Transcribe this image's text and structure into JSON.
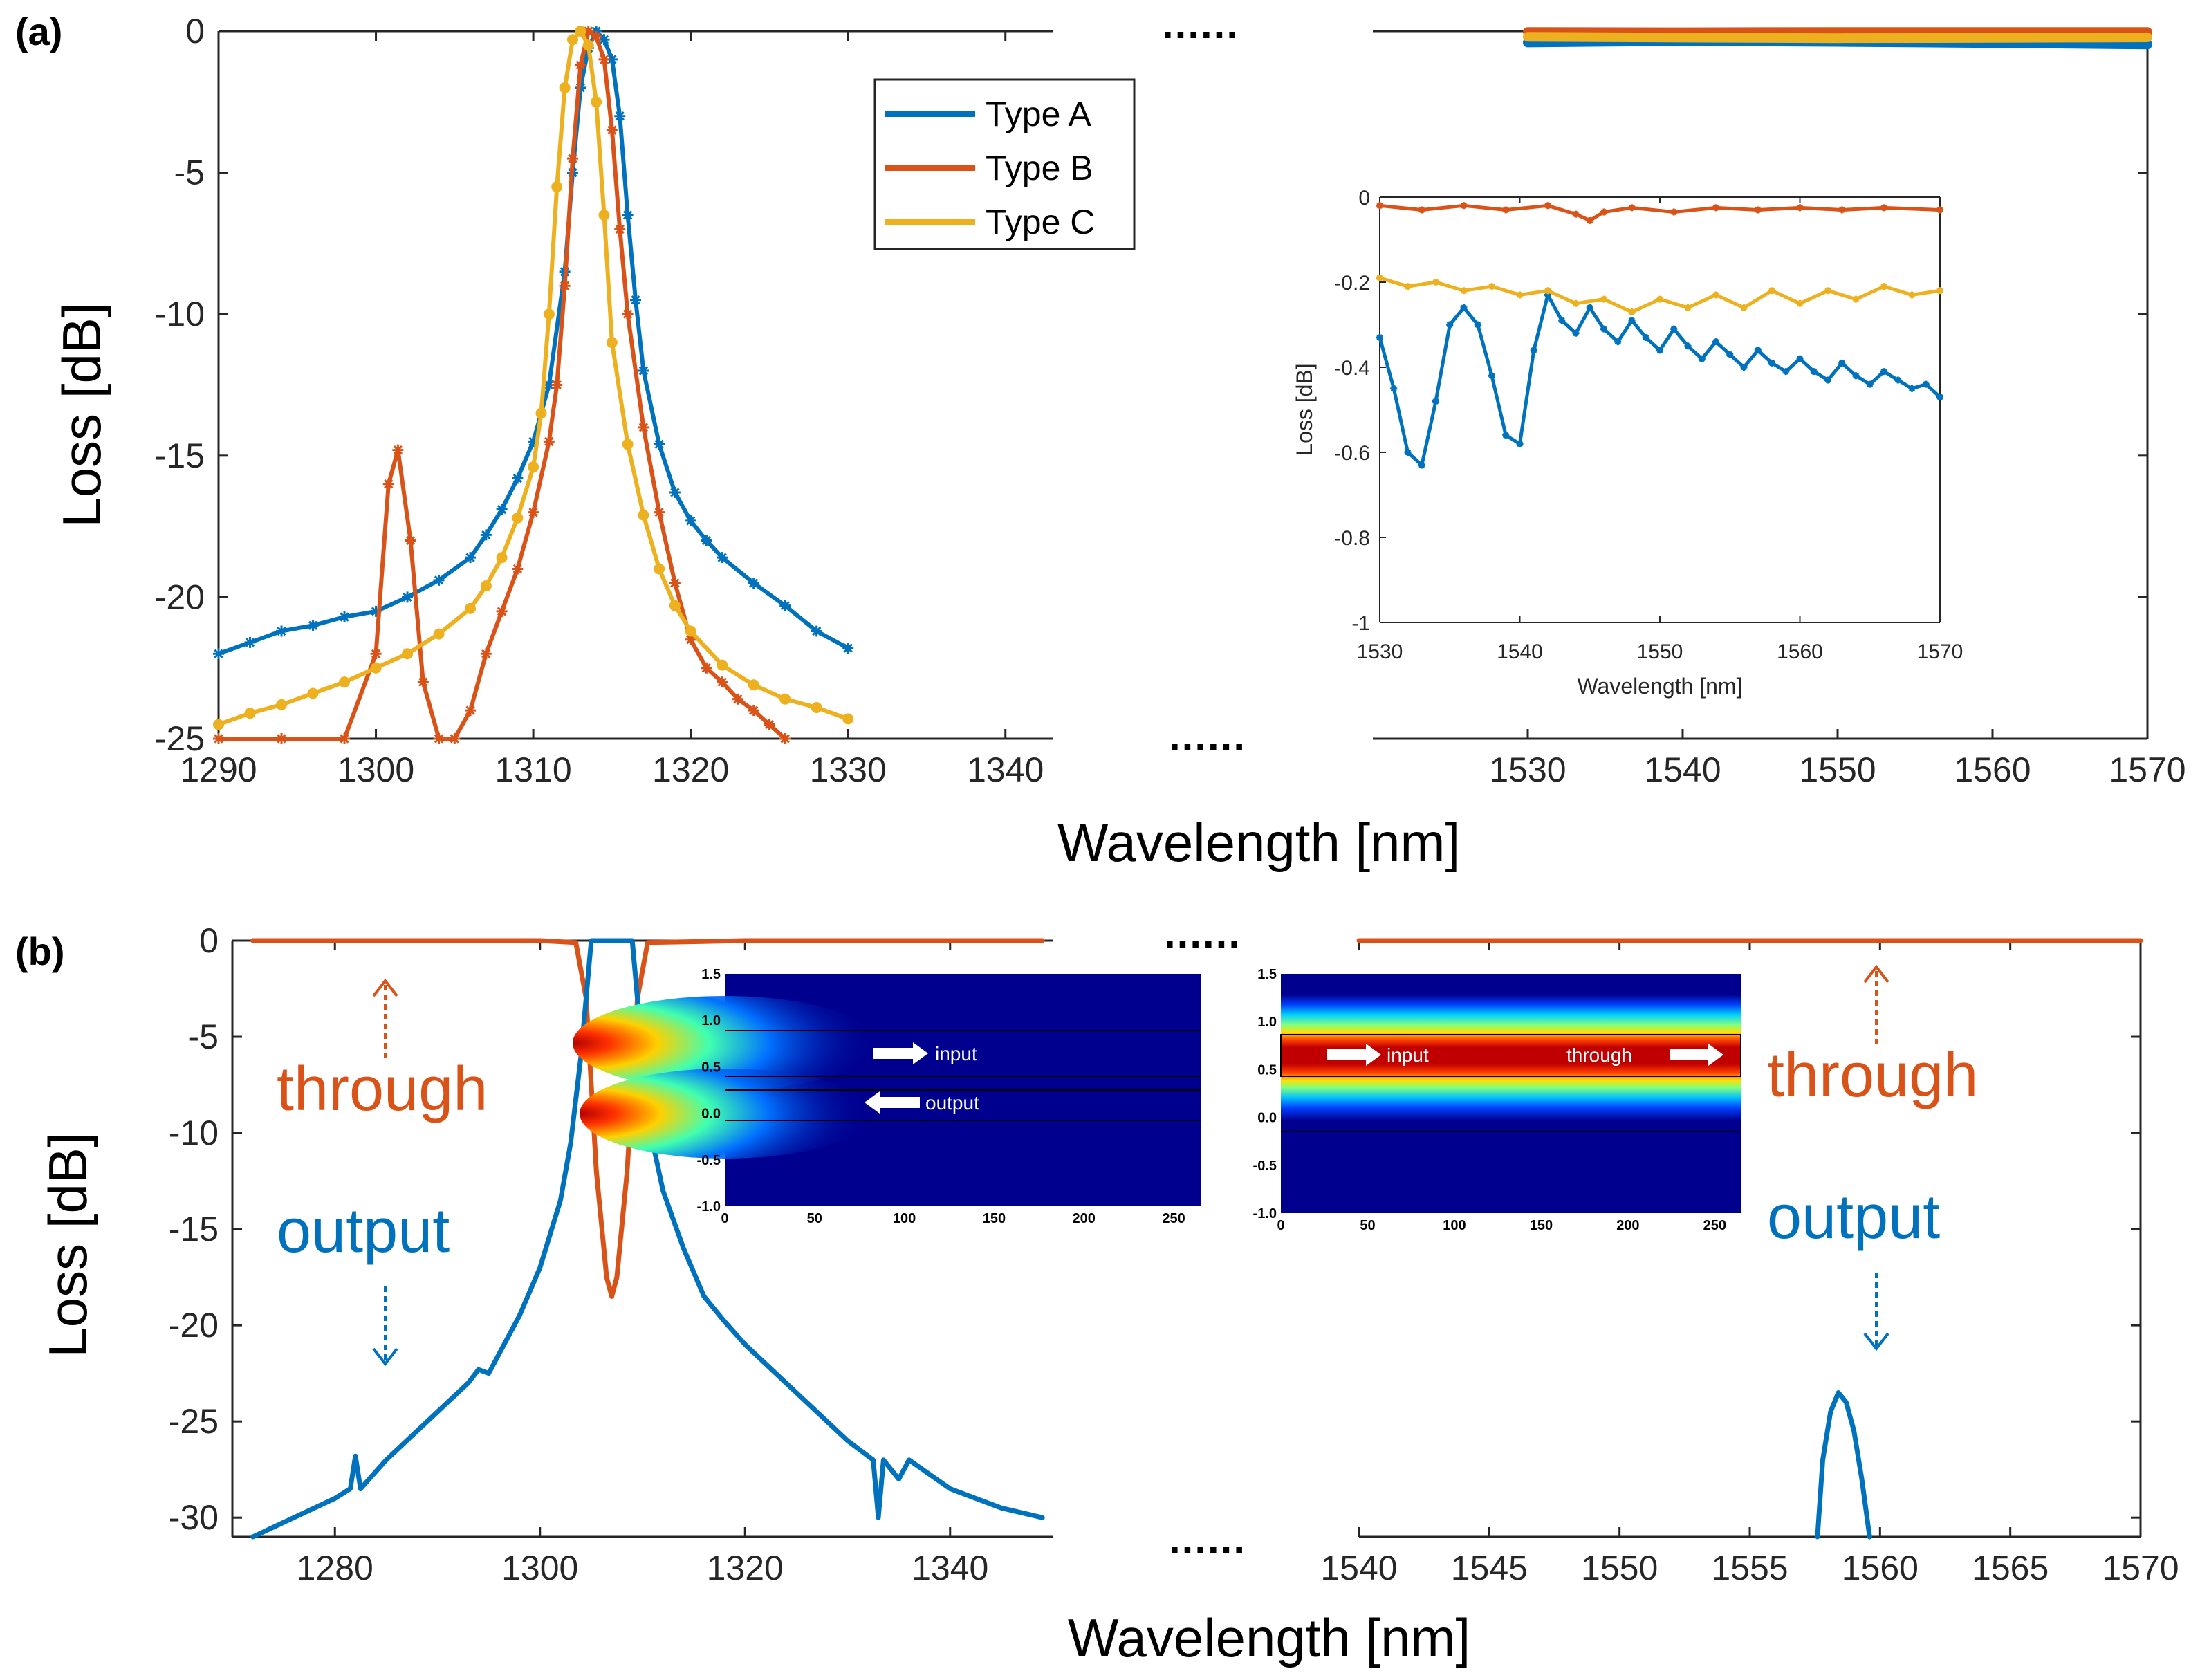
{
  "colors": {
    "type_a": "#0072BD",
    "type_b": "#D95319",
    "type_c": "#EDB120",
    "through": "#D95319",
    "output": "#0072BD",
    "axis": "#262626",
    "mode_background": "#00008f"
  },
  "panel_labels": {
    "a": "(a)",
    "b": "(b)"
  },
  "break_marks": {
    "a_top": "......",
    "a_bottom": "......",
    "b_top": "......",
    "b_bottom": "......"
  },
  "chart_data": [
    {
      "id": "a_left",
      "type": "line",
      "panel": "(a)",
      "xlabel": "Wavelength [nm]",
      "ylabel": "Loss [dB]",
      "xlim": [
        1290,
        1343
      ],
      "ylim": [
        -25,
        0
      ],
      "x_ticks": [
        1290,
        1300,
        1310,
        1320,
        1330,
        1340
      ],
      "y_ticks": [
        0,
        -5,
        -10,
        -15,
        -20,
        -25
      ],
      "legend": {
        "position": "top-right",
        "entries": [
          "Type A",
          "Type B",
          "Type C"
        ]
      },
      "series": [
        {
          "name": "Type A",
          "marker": "star",
          "x": [
            1290,
            1292,
            1294,
            1296,
            1298,
            1300,
            1302,
            1304,
            1306,
            1307,
            1308,
            1309,
            1310,
            1311,
            1312,
            1312.5,
            1313,
            1313.5,
            1314,
            1314.5,
            1315,
            1315.5,
            1316,
            1316.5,
            1317,
            1318,
            1319,
            1320,
            1321,
            1322,
            1324,
            1326,
            1328,
            1330
          ],
          "y": [
            -22,
            -21.6,
            -21.2,
            -21,
            -20.7,
            -20.5,
            -20,
            -19.4,
            -18.6,
            -17.8,
            -16.9,
            -15.8,
            -14.5,
            -12.5,
            -8.5,
            -5,
            -2,
            -0.6,
            0,
            -0.3,
            -1,
            -3,
            -6.5,
            -9.5,
            -12,
            -14.6,
            -16.3,
            -17.3,
            -18,
            -18.6,
            -19.5,
            -20.3,
            -21.2,
            -21.8
          ]
        },
        {
          "name": "Type B",
          "marker": "star",
          "x": [
            1290,
            1294,
            1298,
            1300,
            1300.8,
            1301.4,
            1302.2,
            1303,
            1304,
            1305,
            1306,
            1307,
            1308,
            1309,
            1310,
            1311,
            1311.5,
            1312,
            1312.5,
            1313,
            1313.5,
            1314,
            1314.5,
            1315,
            1315.5,
            1316,
            1317,
            1318,
            1319,
            1320,
            1321,
            1322,
            1323,
            1324,
            1325,
            1326
          ],
          "y": [
            -25,
            -25,
            -25,
            -22,
            -16,
            -14.8,
            -18,
            -23,
            -25,
            -25,
            -24,
            -22,
            -20.5,
            -19,
            -17,
            -14.5,
            -12.5,
            -9,
            -4.5,
            -1.2,
            0,
            -0.2,
            -1,
            -3.5,
            -7,
            -10,
            -14,
            -17,
            -19.5,
            -21.5,
            -22.5,
            -23,
            -23.6,
            -24,
            -24.5,
            -25
          ]
        },
        {
          "name": "Type C",
          "marker": "circle",
          "x": [
            1290,
            1292,
            1294,
            1296,
            1298,
            1300,
            1302,
            1304,
            1306,
            1307,
            1308,
            1309,
            1310,
            1310.5,
            1311,
            1311.5,
            1312,
            1312.5,
            1313,
            1313.5,
            1314,
            1314.5,
            1315,
            1316,
            1317,
            1318,
            1319,
            1320,
            1322,
            1324,
            1326,
            1328,
            1330
          ],
          "y": [
            -24.5,
            -24.1,
            -23.8,
            -23.4,
            -23,
            -22.5,
            -22,
            -21.3,
            -20.4,
            -19.6,
            -18.6,
            -17.2,
            -15.4,
            -13.5,
            -10,
            -5.5,
            -2,
            -0.3,
            0,
            -0.5,
            -2.5,
            -6.5,
            -11,
            -14.6,
            -17.1,
            -19,
            -20.3,
            -21.2,
            -22.4,
            -23.1,
            -23.6,
            -23.9,
            -24.3
          ]
        }
      ]
    },
    {
      "id": "a_right",
      "type": "line",
      "panel": "(a)",
      "xlim": [
        1520,
        1570
      ],
      "ylim": [
        -25,
        0
      ],
      "x_ticks": [
        1530,
        1540,
        1550,
        1560,
        1570
      ],
      "series": [
        {
          "name": "Type A",
          "x": [
            1530,
            1540,
            1550,
            1560,
            1570
          ],
          "y": [
            -0.4,
            -0.35,
            -0.38,
            -0.42,
            -0.47
          ]
        },
        {
          "name": "Type B",
          "x": [
            1530,
            1540,
            1550,
            1560,
            1570
          ],
          "y": [
            -0.03,
            -0.04,
            -0.03,
            -0.03,
            -0.03
          ]
        },
        {
          "name": "Type C",
          "x": [
            1530,
            1540,
            1550,
            1560,
            1570
          ],
          "y": [
            -0.2,
            -0.23,
            -0.25,
            -0.24,
            -0.22
          ]
        }
      ]
    },
    {
      "id": "a_inset",
      "type": "line",
      "panel": "(a) inset",
      "xlabel": "Wavelength [nm]",
      "ylabel": "Loss [dB]",
      "xlim": [
        1530,
        1570
      ],
      "ylim": [
        -1,
        0
      ],
      "x_ticks": [
        1530,
        1540,
        1550,
        1560,
        1570
      ],
      "y_ticks": [
        0,
        -0.2,
        -0.4,
        -0.6,
        -0.8,
        -1
      ],
      "series": [
        {
          "name": "Type A",
          "x": [
            1530,
            1531,
            1532,
            1533,
            1534,
            1535,
            1536,
            1537,
            1538,
            1539,
            1540,
            1541,
            1542,
            1543,
            1544,
            1545,
            1546,
            1547,
            1548,
            1549,
            1550,
            1551,
            1552,
            1553,
            1554,
            1555,
            1556,
            1557,
            1558,
            1559,
            1560,
            1561,
            1562,
            1563,
            1564,
            1565,
            1566,
            1567,
            1568,
            1569,
            1570
          ],
          "y": [
            -0.33,
            -0.45,
            -0.6,
            -0.63,
            -0.48,
            -0.3,
            -0.26,
            -0.3,
            -0.42,
            -0.56,
            -0.58,
            -0.36,
            -0.23,
            -0.29,
            -0.32,
            -0.26,
            -0.31,
            -0.34,
            -0.29,
            -0.33,
            -0.36,
            -0.31,
            -0.35,
            -0.38,
            -0.34,
            -0.37,
            -0.4,
            -0.36,
            -0.39,
            -0.41,
            -0.38,
            -0.41,
            -0.43,
            -0.39,
            -0.42,
            -0.44,
            -0.41,
            -0.43,
            -0.45,
            -0.44,
            -0.47
          ]
        },
        {
          "name": "Type B",
          "x": [
            1530,
            1533,
            1536,
            1539,
            1542,
            1544,
            1545,
            1546,
            1548,
            1551,
            1554,
            1557,
            1560,
            1563,
            1566,
            1570
          ],
          "y": [
            -0.02,
            -0.03,
            -0.02,
            -0.03,
            -0.02,
            -0.04,
            -0.055,
            -0.035,
            -0.025,
            -0.035,
            -0.025,
            -0.03,
            -0.025,
            -0.03,
            -0.025,
            -0.03
          ]
        },
        {
          "name": "Type C",
          "x": [
            1530,
            1532,
            1534,
            1536,
            1538,
            1540,
            1542,
            1544,
            1546,
            1548,
            1550,
            1552,
            1554,
            1556,
            1558,
            1560,
            1562,
            1564,
            1566,
            1568,
            1570
          ],
          "y": [
            -0.19,
            -0.21,
            -0.2,
            -0.22,
            -0.21,
            -0.23,
            -0.22,
            -0.25,
            -0.24,
            -0.27,
            -0.24,
            -0.26,
            -0.23,
            -0.26,
            -0.22,
            -0.25,
            -0.22,
            -0.24,
            -0.21,
            -0.23,
            -0.22
          ]
        }
      ]
    },
    {
      "id": "b_left",
      "type": "line",
      "panel": "(b)",
      "xlabel": "Wavelength [nm]",
      "ylabel": "Loss [dB]",
      "xlim": [
        1270,
        1350
      ],
      "ylim": [
        -31,
        0
      ],
      "x_ticks": [
        1280,
        1300,
        1320,
        1340
      ],
      "y_ticks": [
        0,
        -5,
        -10,
        -15,
        -20,
        -25,
        -30
      ],
      "annotations": [
        "through",
        "output"
      ],
      "series": [
        {
          "name": "through",
          "x": [
            1272,
            1290,
            1300,
            1303.5,
            1304.5,
            1305.5,
            1306.5,
            1307,
            1307.5,
            1308.5,
            1309.5,
            1310.5,
            1320,
            1335,
            1349
          ],
          "y": [
            0,
            0,
            0,
            -0.1,
            -3,
            -12,
            -17.5,
            -18.5,
            -17.5,
            -12,
            -3,
            -0.1,
            0,
            0,
            0
          ]
        },
        {
          "name": "output",
          "x": [
            1272,
            1276,
            1280,
            1281.5,
            1282,
            1282.5,
            1285,
            1290,
            1293,
            1294,
            1295,
            1298,
            1300,
            1302,
            1303,
            1304,
            1305,
            1306,
            1307,
            1308,
            1309,
            1310,
            1311,
            1312,
            1314,
            1316,
            1318,
            1320,
            1325,
            1330,
            1332.5,
            1333,
            1333.5,
            1335,
            1336,
            1340,
            1345,
            1349
          ],
          "y": [
            -31,
            -30,
            -29,
            -28.5,
            -26.8,
            -28.5,
            -27,
            -24.5,
            -23,
            -22.3,
            -22.5,
            -19.5,
            -17,
            -13.5,
            -10.5,
            -6,
            0,
            0,
            0,
            0,
            0,
            -6,
            -10.5,
            -13,
            -16,
            -18.5,
            -19.8,
            -21,
            -23.5,
            -26,
            -27,
            -30,
            -27,
            -28,
            -27,
            -28.5,
            -29.5,
            -30
          ]
        }
      ]
    },
    {
      "id": "b_right",
      "type": "line",
      "panel": "(b)",
      "xlim": [
        1540,
        1570
      ],
      "ylim": [
        -31,
        0
      ],
      "x_ticks": [
        1540,
        1545,
        1550,
        1555,
        1560,
        1565,
        1570
      ],
      "annotations": [
        "through",
        "output"
      ],
      "series": [
        {
          "name": "through",
          "x": [
            1540,
            1570
          ],
          "y": [
            0,
            0
          ]
        },
        {
          "name": "output",
          "x": [
            1557.6,
            1557.8,
            1558.1,
            1558.4,
            1558.7,
            1559,
            1559.3,
            1559.6
          ],
          "y": [
            -31,
            -27,
            -24.5,
            -23.5,
            -24,
            -25.5,
            -28,
            -31
          ]
        }
      ]
    },
    {
      "id": "b_inset_mode_1310",
      "type": "heatmap",
      "panel": "(b) inset",
      "x_ticks": [
        0,
        50,
        100,
        150,
        200,
        250
      ],
      "y_ticks": [
        1.5,
        1.0,
        0.5,
        0.0,
        -0.5,
        -1.0
      ],
      "tick_labels_x": [
        "0",
        "50",
        "100",
        "150",
        "200",
        "250"
      ],
      "tick_labels_y": [
        "1.5",
        "1.0",
        "0.5",
        "0.0",
        "-0.5",
        "-1.0"
      ],
      "labels": [
        "input",
        "output"
      ]
    },
    {
      "id": "b_inset_mode_1550",
      "type": "heatmap",
      "panel": "(b) inset",
      "x_ticks": [
        0,
        50,
        100,
        150,
        200,
        250
      ],
      "y_ticks": [
        1.5,
        1.0,
        0.5,
        0.0,
        -0.5,
        -1.0
      ],
      "tick_labels_x": [
        "0",
        "50",
        "100",
        "150",
        "200",
        "250"
      ],
      "tick_labels_y": [
        "1.5",
        "1.0",
        "0.5",
        "0.0",
        "-0.5",
        "-1.0"
      ],
      "labels": [
        "input",
        "through"
      ]
    }
  ]
}
